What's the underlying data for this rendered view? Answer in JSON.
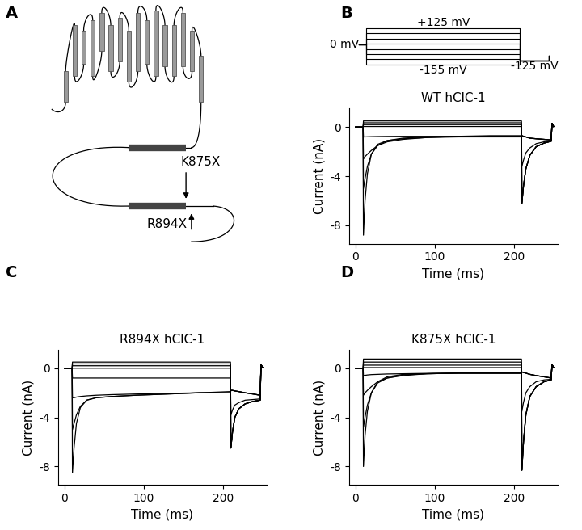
{
  "chart_data": [
    {
      "type": "diagram",
      "panel_label": "A",
      "annotations": [
        "K875X",
        "R894X"
      ]
    },
    {
      "type": "protocol",
      "panel_label": "B",
      "color": "#000000",
      "annotations": [
        "+125 mV",
        "0 mV",
        "-155 mV",
        "-125 mV"
      ],
      "x": [
        0,
        10,
        10,
        210,
        210,
        248,
        248
      ],
      "series": [
        {
          "values": [
            0,
            0,
            125,
            125,
            -125,
            -125,
            -85
          ]
        },
        {
          "values": [
            0,
            0,
            85,
            85,
            -125,
            -125,
            -85
          ]
        },
        {
          "values": [
            0,
            0,
            45,
            45,
            -125,
            -125,
            -85
          ]
        },
        {
          "values": [
            0,
            0,
            5,
            5,
            -125,
            -125,
            -85
          ]
        },
        {
          "values": [
            0,
            0,
            -35,
            -35,
            -125,
            -125,
            -85
          ]
        },
        {
          "values": [
            0,
            0,
            -75,
            -75,
            -125,
            -125,
            -85
          ]
        },
        {
          "values": [
            0,
            0,
            -115,
            -115,
            -125,
            -125,
            -85
          ]
        },
        {
          "values": [
            0,
            0,
            -155,
            -155,
            -125,
            -125,
            -85
          ]
        }
      ]
    },
    {
      "type": "line",
      "title": "WT hClC-1",
      "x_label": "Time (ms)",
      "y_label": "Current (nA)",
      "color": "#000000",
      "xlim": [
        -8,
        255
      ],
      "xticks": [
        0,
        100,
        200
      ],
      "ylim": [
        -9.5,
        1.5
      ],
      "yticks": [
        -8,
        -4,
        0
      ],
      "x": [
        0,
        9.5,
        10,
        12,
        15,
        20,
        28,
        40,
        60,
        90,
        130,
        170,
        209.5,
        210,
        212,
        215,
        220,
        228,
        238,
        247,
        248,
        250
      ],
      "series": [
        {
          "values": [
            0,
            0,
            0.5,
            0.5,
            0.5,
            0.5,
            0.5,
            0.5,
            0.5,
            0.5,
            0.5,
            0.5,
            0.5,
            -6.2,
            -4.8,
            -3.4,
            -2.3,
            -1.6,
            -1.3,
            -1.15,
            0.3,
            0.05
          ]
        },
        {
          "values": [
            0,
            0,
            0.35,
            0.35,
            0.35,
            0.35,
            0.35,
            0.35,
            0.35,
            0.35,
            0.35,
            0.35,
            0.35,
            -6.2,
            -4.8,
            -3.4,
            -2.3,
            -1.6,
            -1.3,
            -1.15,
            0.3,
            0.05
          ]
        },
        {
          "values": [
            0,
            0,
            0.2,
            0.2,
            0.2,
            0.2,
            0.2,
            0.2,
            0.2,
            0.2,
            0.2,
            0.2,
            0.2,
            -6.2,
            -4.8,
            -3.4,
            -2.3,
            -1.6,
            -1.3,
            -1.15,
            0.3,
            0.05
          ]
        },
        {
          "values": [
            0,
            0,
            0.05,
            0.05,
            0.05,
            0.05,
            0.05,
            0.05,
            0.05,
            0.05,
            0.05,
            0.05,
            0.05,
            -6.2,
            -4.8,
            -3.4,
            -2.3,
            -1.6,
            -1.3,
            -1.15,
            0.3,
            0.05
          ]
        },
        {
          "values": [
            0,
            0,
            -0.8,
            -0.8,
            -0.79,
            -0.78,
            -0.77,
            -0.76,
            -0.75,
            -0.75,
            -0.75,
            -0.75,
            -0.75,
            -3.2,
            -2.7,
            -2.1,
            -1.7,
            -1.35,
            -1.2,
            -1.1,
            0.3,
            0.05
          ]
        },
        {
          "values": [
            0,
            0,
            -2.6,
            -2.4,
            -2.2,
            -1.9,
            -1.5,
            -1.2,
            -1.0,
            -0.85,
            -0.75,
            -0.7,
            -0.7,
            -0.7,
            -0.75,
            -0.8,
            -0.9,
            -0.95,
            -1.0,
            -1.05,
            0.3,
            0.05
          ]
        },
        {
          "values": [
            0,
            0,
            -5.0,
            -4.2,
            -3.2,
            -2.2,
            -1.5,
            -1.1,
            -0.9,
            -0.8,
            -0.75,
            -0.75,
            -0.75,
            -0.7,
            -0.75,
            -0.8,
            -0.9,
            -0.95,
            -1.0,
            -1.05,
            0.3,
            0.05
          ]
        },
        {
          "values": [
            0,
            0,
            -8.8,
            -6.0,
            -3.8,
            -2.2,
            -1.4,
            -1.1,
            -0.95,
            -0.85,
            -0.8,
            -0.8,
            -0.8,
            -0.7,
            -0.75,
            -0.8,
            -0.9,
            -0.95,
            -1.0,
            -1.05,
            0.3,
            0.05
          ]
        }
      ]
    },
    {
      "type": "line",
      "panel_label": "C",
      "title": "R894X hClC-1",
      "x_label": "Time (ms)",
      "y_label": "Current (nA)",
      "color": "#000000",
      "xlim": [
        -8,
        255
      ],
      "xticks": [
        0,
        100,
        200
      ],
      "ylim": [
        -9.5,
        1.5
      ],
      "yticks": [
        -8,
        -4,
        0
      ],
      "x": [
        0,
        9.5,
        10,
        12,
        15,
        20,
        28,
        40,
        60,
        90,
        130,
        170,
        209.5,
        210,
        212,
        215,
        220,
        228,
        238,
        247,
        248,
        250
      ],
      "series": [
        {
          "values": [
            0,
            0,
            0.5,
            0.5,
            0.5,
            0.5,
            0.5,
            0.5,
            0.5,
            0.5,
            0.5,
            0.5,
            0.5,
            -6.5,
            -5.2,
            -4.0,
            -3.3,
            -2.9,
            -2.7,
            -2.6,
            0.3,
            0.05
          ]
        },
        {
          "values": [
            0,
            0,
            0.35,
            0.35,
            0.35,
            0.35,
            0.35,
            0.35,
            0.35,
            0.35,
            0.35,
            0.35,
            0.35,
            -6.5,
            -5.2,
            -4.0,
            -3.3,
            -2.9,
            -2.7,
            -2.6,
            0.3,
            0.05
          ]
        },
        {
          "values": [
            0,
            0,
            0.2,
            0.2,
            0.2,
            0.2,
            0.2,
            0.2,
            0.2,
            0.2,
            0.2,
            0.2,
            0.2,
            -6.5,
            -5.2,
            -4.0,
            -3.3,
            -2.9,
            -2.7,
            -2.6,
            0.3,
            0.05
          ]
        },
        {
          "values": [
            0,
            0,
            0.0,
            0.0,
            0.0,
            0.0,
            0.0,
            0.0,
            0.0,
            0.0,
            0.0,
            0.0,
            0.0,
            -6.5,
            -5.2,
            -4.0,
            -3.3,
            -2.9,
            -2.7,
            -2.6,
            0.3,
            0.05
          ]
        },
        {
          "values": [
            0,
            0,
            -0.8,
            -0.8,
            -0.8,
            -0.8,
            -0.8,
            -0.8,
            -0.8,
            -0.8,
            -0.8,
            -0.8,
            -0.8,
            -3.8,
            -3.4,
            -3.0,
            -2.8,
            -2.6,
            -2.55,
            -2.5,
            0.3,
            0.05
          ]
        },
        {
          "values": [
            0,
            0,
            -2.4,
            -2.4,
            -2.35,
            -2.3,
            -2.25,
            -2.2,
            -2.15,
            -2.1,
            -2.05,
            -2.0,
            -2.0,
            -1.8,
            -1.8,
            -1.85,
            -1.9,
            -2.0,
            -2.1,
            -2.2,
            0.3,
            0.05
          ]
        },
        {
          "values": [
            0,
            0,
            -5.0,
            -4.5,
            -3.8,
            -3.1,
            -2.6,
            -2.4,
            -2.3,
            -2.2,
            -2.1,
            -2.0,
            -2.0,
            -1.8,
            -1.8,
            -1.85,
            -1.9,
            -2.0,
            -2.1,
            -2.2,
            0.3,
            0.05
          ]
        },
        {
          "values": [
            0,
            0,
            -8.5,
            -6.5,
            -4.5,
            -3.2,
            -2.6,
            -2.4,
            -2.3,
            -2.2,
            -2.1,
            -2.0,
            -1.9,
            -1.8,
            -1.8,
            -1.85,
            -1.9,
            -2.0,
            -2.1,
            -2.2,
            0.3,
            0.05
          ]
        }
      ]
    },
    {
      "type": "line",
      "panel_label": "D",
      "title": "K875X hClC-1",
      "x_label": "Time (ms)",
      "y_label": "Current (nA)",
      "color": "#000000",
      "xlim": [
        -8,
        255
      ],
      "xticks": [
        0,
        100,
        200
      ],
      "ylim": [
        -9.5,
        1.5
      ],
      "yticks": [
        -8,
        -4,
        0
      ],
      "x": [
        0,
        9.5,
        10,
        12,
        15,
        20,
        28,
        40,
        60,
        90,
        130,
        170,
        209.5,
        210,
        212,
        215,
        220,
        228,
        238,
        247,
        248,
        250
      ],
      "series": [
        {
          "values": [
            0,
            0,
            0.75,
            0.75,
            0.75,
            0.75,
            0.75,
            0.75,
            0.75,
            0.75,
            0.75,
            0.75,
            0.75,
            -8.3,
            -6.0,
            -3.8,
            -2.3,
            -1.5,
            -1.1,
            -0.95,
            0.3,
            0.05
          ]
        },
        {
          "values": [
            0,
            0,
            0.5,
            0.5,
            0.5,
            0.5,
            0.5,
            0.5,
            0.5,
            0.5,
            0.5,
            0.5,
            0.5,
            -8.3,
            -6.0,
            -3.8,
            -2.3,
            -1.5,
            -1.1,
            -0.95,
            0.3,
            0.05
          ]
        },
        {
          "values": [
            0,
            0,
            0.25,
            0.25,
            0.25,
            0.25,
            0.25,
            0.25,
            0.25,
            0.25,
            0.25,
            0.25,
            0.25,
            -8.3,
            -6.0,
            -3.8,
            -2.3,
            -1.5,
            -1.1,
            -0.95,
            0.3,
            0.05
          ]
        },
        {
          "values": [
            0,
            0,
            0.05,
            0.05,
            0.05,
            0.05,
            0.05,
            0.05,
            0.05,
            0.05,
            0.05,
            0.05,
            0.05,
            -8.3,
            -6.0,
            -3.8,
            -2.3,
            -1.5,
            -1.1,
            -0.95,
            0.3,
            0.05
          ]
        },
        {
          "values": [
            0,
            0,
            -0.6,
            -0.58,
            -0.55,
            -0.52,
            -0.5,
            -0.47,
            -0.45,
            -0.42,
            -0.4,
            -0.4,
            -0.4,
            -3.5,
            -2.8,
            -2.0,
            -1.5,
            -1.1,
            -0.95,
            -0.9,
            0.3,
            0.05
          ]
        },
        {
          "values": [
            0,
            0,
            -2.2,
            -2.0,
            -1.8,
            -1.5,
            -1.1,
            -0.8,
            -0.6,
            -0.45,
            -0.4,
            -0.4,
            -0.4,
            -0.3,
            -0.35,
            -0.4,
            -0.5,
            -0.6,
            -0.7,
            -0.8,
            0.3,
            0.05
          ]
        },
        {
          "values": [
            0,
            0,
            -4.8,
            -4.0,
            -3.0,
            -2.0,
            -1.2,
            -0.8,
            -0.55,
            -0.45,
            -0.4,
            -0.4,
            -0.4,
            -0.3,
            -0.35,
            -0.4,
            -0.5,
            -0.6,
            -0.7,
            -0.8,
            0.3,
            0.05
          ]
        },
        {
          "values": [
            0,
            0,
            -8.0,
            -5.5,
            -3.5,
            -2.0,
            -1.1,
            -0.7,
            -0.5,
            -0.45,
            -0.4,
            -0.4,
            -0.4,
            -0.3,
            -0.35,
            -0.4,
            -0.5,
            -0.6,
            -0.7,
            -0.8,
            0.3,
            0.05
          ]
        }
      ]
    }
  ]
}
